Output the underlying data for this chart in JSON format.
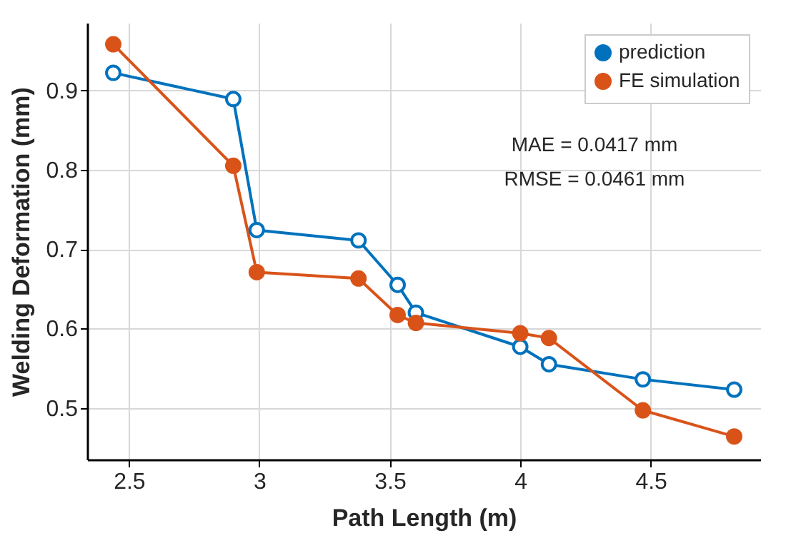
{
  "chart_data": {
    "type": "line",
    "xlabel": "Path Length (m)",
    "ylabel": "Welding Deformation (mm)",
    "x": [
      2.44,
      2.9,
      2.99,
      3.38,
      3.53,
      3.6,
      4.0,
      4.11,
      4.47,
      4.82
    ],
    "series": [
      {
        "name": "prediction",
        "color": "#0072bd",
        "values": [
          0.922,
          0.889,
          0.724,
          0.711,
          0.655,
          0.62,
          0.577,
          0.555,
          0.536,
          0.523
        ]
      },
      {
        "name": "FE simulation",
        "color": "#d95319",
        "values": [
          0.958,
          0.805,
          0.671,
          0.663,
          0.617,
          0.607,
          0.594,
          0.588,
          0.497,
          0.464
        ]
      }
    ],
    "xlim": [
      2.34,
      4.92
    ],
    "xticks": [
      2.5,
      3,
      3.5,
      4,
      4.5
    ],
    "ylim": [
      0.435,
      0.985
    ],
    "yticks": [
      0.5,
      0.6,
      0.7,
      0.8,
      0.9
    ],
    "grid": true,
    "legend": "top right",
    "marker": "circle",
    "line_style": "solid",
    "annotations": [
      "MAE = 0.0417 mm",
      "RMSE = 0.0461 mm"
    ]
  }
}
